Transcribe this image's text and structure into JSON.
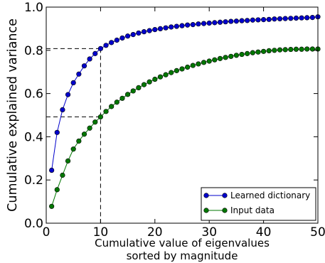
{
  "chart_data": {
    "type": "line",
    "title": "",
    "xlabel_lines": [
      "Cumulative value of eigenvalues",
      "sorted by magnitude"
    ],
    "ylabel": "Cumulative explained variance",
    "xlim": [
      0,
      50
    ],
    "ylim": [
      0.0,
      1.0
    ],
    "x_ticks": [
      0,
      10,
      20,
      30,
      40,
      50
    ],
    "x_tick_labels": [
      "0",
      "10",
      "20",
      "30",
      "40",
      "50"
    ],
    "y_ticks": [
      0.0,
      0.2,
      0.4,
      0.6,
      0.8,
      1.0
    ],
    "y_tick_labels": [
      "0.0",
      "0.2",
      "0.4",
      "0.6",
      "0.8",
      "1.0"
    ],
    "grid": false,
    "legend_position": "lower-right",
    "reference_lines": {
      "x": 10,
      "y_values": [
        0.808,
        0.492
      ]
    },
    "x": [
      1,
      2,
      3,
      4,
      5,
      6,
      7,
      8,
      9,
      10,
      11,
      12,
      13,
      14,
      15,
      16,
      17,
      18,
      19,
      20,
      21,
      22,
      23,
      24,
      25,
      26,
      27,
      28,
      29,
      30,
      31,
      32,
      33,
      34,
      35,
      36,
      37,
      38,
      39,
      40,
      41,
      42,
      43,
      44,
      45,
      46,
      47,
      48,
      49,
      50
    ],
    "series": [
      {
        "name": "Learned dictionary",
        "color": "#0000cc",
        "values": [
          0.245,
          0.42,
          0.525,
          0.595,
          0.65,
          0.69,
          0.728,
          0.76,
          0.785,
          0.808,
          0.823,
          0.836,
          0.847,
          0.857,
          0.866,
          0.873,
          0.88,
          0.886,
          0.891,
          0.896,
          0.9,
          0.904,
          0.908,
          0.911,
          0.914,
          0.917,
          0.919,
          0.922,
          0.924,
          0.926,
          0.928,
          0.93,
          0.932,
          0.934,
          0.935,
          0.937,
          0.938,
          0.94,
          0.941,
          0.942,
          0.943,
          0.945,
          0.946,
          0.947,
          0.948,
          0.949,
          0.95,
          0.951,
          0.952,
          0.955
        ]
      },
      {
        "name": "Input data",
        "color": "#007700",
        "values": [
          0.078,
          0.155,
          0.222,
          0.288,
          0.343,
          0.38,
          0.412,
          0.44,
          0.468,
          0.492,
          0.517,
          0.54,
          0.56,
          0.578,
          0.596,
          0.612,
          0.627,
          0.641,
          0.654,
          0.666,
          0.677,
          0.687,
          0.697,
          0.706,
          0.714,
          0.722,
          0.73,
          0.737,
          0.744,
          0.75,
          0.756,
          0.762,
          0.767,
          0.772,
          0.777,
          0.781,
          0.785,
          0.789,
          0.792,
          0.795,
          0.798,
          0.8,
          0.802,
          0.803,
          0.804,
          0.805,
          0.805,
          0.806,
          0.806,
          0.806
        ]
      }
    ]
  }
}
